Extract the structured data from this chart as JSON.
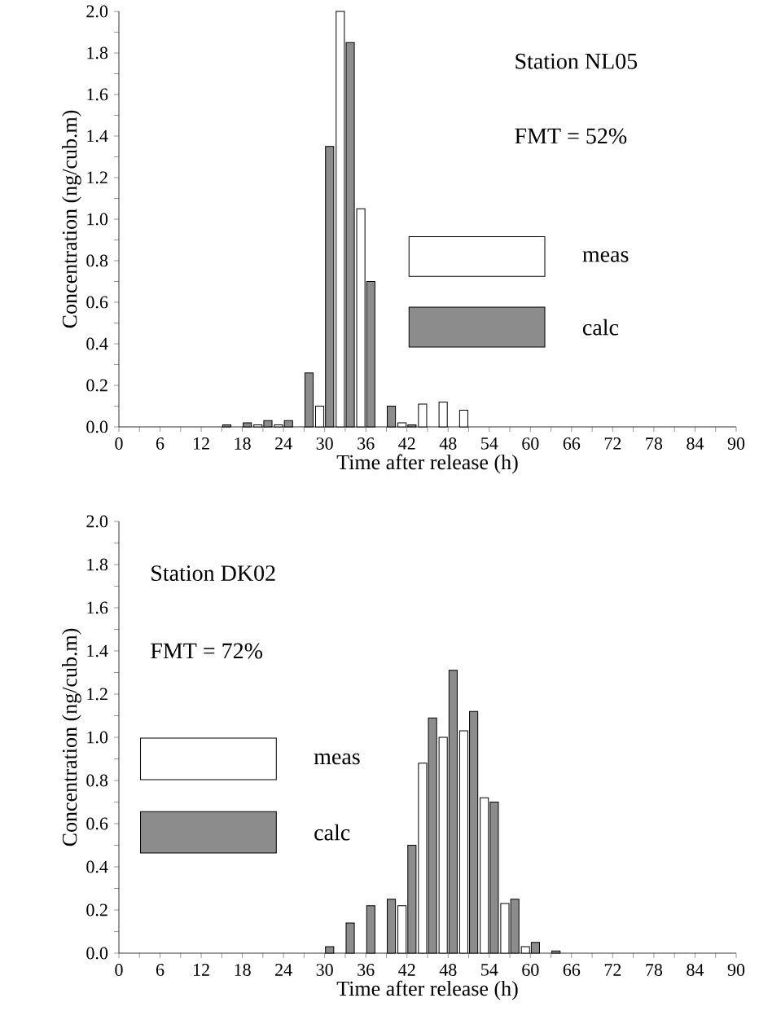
{
  "chart_data": [
    {
      "type": "bar",
      "xlabel": "Time after release (h)",
      "ylabel": "Concentration (ng/cub.m)",
      "annotations": [
        "Station NL05",
        "FMT = 52%"
      ],
      "legend": "right",
      "xlim": [
        0,
        90
      ],
      "ylim": [
        0,
        2.0
      ],
      "xticks": [
        0,
        {
          "value": 3,
          "label": null
        },
        6,
        {
          "value": 9,
          "label": null
        },
        12,
        {
          "value": 15,
          "label": null
        },
        18,
        {
          "value": 21,
          "label": null
        },
        24,
        {
          "value": 27,
          "label": null
        },
        30,
        {
          "value": 33,
          "label": null
        },
        36,
        {
          "value": 39,
          "label": null
        },
        42,
        {
          "value": 45,
          "label": null
        },
        48,
        {
          "value": 51,
          "label": null
        },
        54,
        {
          "value": 57,
          "label": null
        },
        60,
        {
          "value": 63,
          "label": null
        },
        66,
        {
          "value": 69,
          "label": null
        },
        72,
        {
          "value": 75,
          "label": null
        },
        78,
        {
          "value": 81,
          "label": null
        },
        84,
        {
          "value": 87,
          "label": null
        },
        90
      ],
      "yticks": [
        {
          "value": 0,
          "label": "0.0"
        },
        {
          "value": 0.1,
          "label": null
        },
        0.2,
        {
          "value": 0.3,
          "label": null
        },
        0.4,
        {
          "value": 0.5,
          "label": null
        },
        0.6,
        {
          "value": 0.7,
          "label": null
        },
        0.8,
        {
          "value": 0.9,
          "label": null
        },
        {
          "value": 1,
          "label": "1.0"
        },
        {
          "value": 1.1,
          "label": null
        },
        1.2,
        {
          "value": 1.3,
          "label": null
        },
        1.4,
        {
          "value": 1.5,
          "label": null
        },
        1.6,
        {
          "value": 1.7,
          "label": null
        },
        1.8,
        {
          "value": 1.9,
          "label": null
        },
        {
          "value": 2,
          "label": "2.0"
        }
      ],
      "series": [
        {
          "name": "meas",
          "color": "#ffffff",
          "x": [
            21,
            24,
            30,
            33,
            36,
            42,
            45,
            48,
            51
          ],
          "values": [
            0.01,
            0.01,
            0.1,
            2.0,
            1.05,
            0.02,
            0.11,
            0.12,
            0.08
          ]
        },
        {
          "name": "calc",
          "color": "#8c8c8c",
          "x": [
            15,
            18,
            21,
            24,
            27,
            30,
            33,
            36,
            39,
            42
          ],
          "values": [
            0.01,
            0.02,
            0.03,
            0.03,
            0.26,
            1.35,
            1.85,
            0.7,
            0.1,
            0.01
          ]
        }
      ]
    },
    {
      "type": "bar",
      "xlabel": "Time after release (h)",
      "ylabel": "Concentration (ng/cub.m)",
      "annotations": [
        "Station DK02",
        "FMT = 72%"
      ],
      "legend": "left",
      "xlim": [
        0,
        90
      ],
      "ylim": [
        0,
        2.0
      ],
      "xticks": [
        0,
        {
          "value": 3,
          "label": null
        },
        6,
        {
          "value": 9,
          "label": null
        },
        12,
        {
          "value": 15,
          "label": null
        },
        18,
        {
          "value": 21,
          "label": null
        },
        24,
        {
          "value": 27,
          "label": null
        },
        30,
        {
          "value": 33,
          "label": null
        },
        36,
        {
          "value": 39,
          "label": null
        },
        42,
        {
          "value": 45,
          "label": null
        },
        48,
        {
          "value": 51,
          "label": null
        },
        54,
        {
          "value": 57,
          "label": null
        },
        60,
        {
          "value": 63,
          "label": null
        },
        66,
        {
          "value": 69,
          "label": null
        },
        72,
        {
          "value": 75,
          "label": null
        },
        78,
        {
          "value": 81,
          "label": null
        },
        84,
        {
          "value": 87,
          "label": null
        },
        90
      ],
      "yticks": [
        {
          "value": 0,
          "label": "0.0"
        },
        {
          "value": 0.1,
          "label": null
        },
        0.2,
        {
          "value": 0.3,
          "label": null
        },
        0.4,
        {
          "value": 0.5,
          "label": null
        },
        0.6,
        {
          "value": 0.7,
          "label": null
        },
        0.8,
        {
          "value": 0.9,
          "label": null
        },
        {
          "value": 1,
          "label": "1.0"
        },
        {
          "value": 1.1,
          "label": null
        },
        1.2,
        {
          "value": 1.3,
          "label": null
        },
        1.4,
        {
          "value": 1.5,
          "label": null
        },
        1.6,
        {
          "value": 1.7,
          "label": null
        },
        1.8,
        {
          "value": 1.9,
          "label": null
        },
        {
          "value": 2,
          "label": "2.0"
        }
      ],
      "series": [
        {
          "name": "meas",
          "color": "#ffffff",
          "x": [
            42,
            45,
            48,
            51,
            54,
            57,
            60
          ],
          "values": [
            0.22,
            0.88,
            1.0,
            1.03,
            0.72,
            0.23,
            0.03
          ]
        },
        {
          "name": "calc",
          "color": "#8c8c8c",
          "x": [
            30,
            33,
            36,
            39,
            42,
            45,
            48,
            51,
            54,
            57,
            60,
            63
          ],
          "values": [
            0.03,
            0.14,
            0.22,
            0.25,
            0.5,
            1.09,
            1.31,
            1.12,
            0.7,
            0.25,
            0.05,
            0.01
          ]
        }
      ]
    }
  ]
}
